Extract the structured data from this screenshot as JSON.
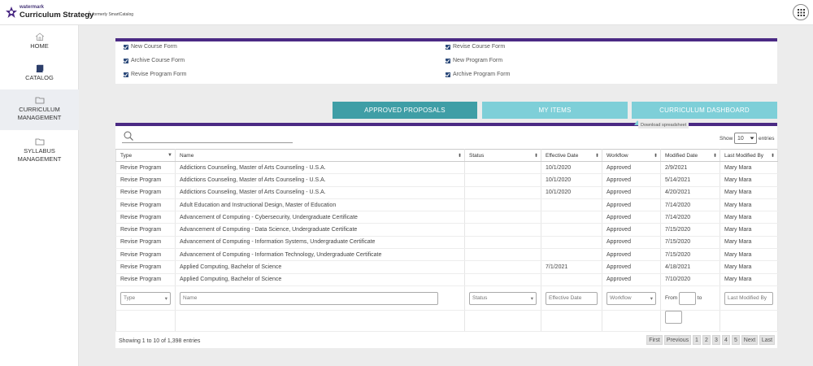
{
  "header": {
    "brand_small": "watermark",
    "brand_name": "Curriculum Strategy",
    "separator": "|",
    "formerly": "formerly SmartCatalog"
  },
  "sidebar": {
    "items": [
      {
        "label": "HOME",
        "icon": "home-icon"
      },
      {
        "label": "CATALOG",
        "icon": "book-icon"
      },
      {
        "label": "CURRICULUM MANAGEMENT",
        "line1": "CURRICULUM",
        "line2": "MANAGEMENT",
        "icon": "folder-icon"
      },
      {
        "label": "SYLLABUS MANAGEMENT",
        "line1": "SYLLABUS",
        "line2": "MANAGEMENT",
        "icon": "folder-icon"
      }
    ]
  },
  "forms": [
    "New Course Form",
    "Revise Course Form",
    "Archive Course Form",
    "New Program Form",
    "Revise Program Form",
    "Archive Program Form"
  ],
  "tabs": [
    "APPROVED PROPOSALS",
    "MY ITEMS",
    "CURRICULUM DASHBOARD"
  ],
  "tooltip": "Download spreadsheet",
  "search": {
    "placeholder": ""
  },
  "show": {
    "label": "Show",
    "value": "10",
    "suffix": "entries"
  },
  "table": {
    "headers": [
      "Type",
      "Name",
      "Status",
      "Effective Date",
      "Workflow",
      "Modified Date",
      "Last Modified By"
    ],
    "rows": [
      [
        "Revise Program",
        "Addictions Counseling, Master of Arts Counseling - U.S.A.",
        "",
        "10/1/2020",
        "Approved",
        "2/9/2021",
        "Mary Mara"
      ],
      [
        "Revise Program",
        "Addictions Counseling, Master of Arts Counseling - U.S.A.",
        "",
        "10/1/2020",
        "Approved",
        "5/14/2021",
        "Mary Mara"
      ],
      [
        "Revise Program",
        "Addictions Counseling, Master of Arts Counseling - U.S.A.",
        "",
        "10/1/2020",
        "Approved",
        "4/20/2021",
        "Mary Mara"
      ],
      [
        "Revise Program",
        "Adult Education and Instructional Design, Master of Education",
        "",
        "",
        "Approved",
        "7/14/2020",
        "Mary Mara"
      ],
      [
        "Revise Program",
        "Advancement of Computing - Cybersecurity, Undergraduate Certificate",
        "",
        "",
        "Approved",
        "7/14/2020",
        "Mary Mara"
      ],
      [
        "Revise Program",
        "Advancement of Computing - Data Science, Undergraduate Certificate",
        "",
        "",
        "Approved",
        "7/15/2020",
        "Mary Mara"
      ],
      [
        "Revise Program",
        "Advancement of Computing - Information Systems, Undergraduate Certificate",
        "",
        "",
        "Approved",
        "7/15/2020",
        "Mary Mara"
      ],
      [
        "Revise Program",
        "Advancement of Computing - Information Technology, Undergraduate Certificate",
        "",
        "",
        "Approved",
        "7/15/2020",
        "Mary Mara"
      ],
      [
        "Revise Program",
        "Applied Computing, Bachelor of Science",
        "",
        "7/1/2021",
        "Approved",
        "4/18/2021",
        "Mary Mara"
      ],
      [
        "Revise Program",
        "Applied Computing, Bachelor of Science",
        "",
        "",
        "Approved",
        "7/10/2020",
        "Mary Mara"
      ]
    ]
  },
  "filters": {
    "type": "Type",
    "name": "Name",
    "status": "Status",
    "effective_date": "Effective Date",
    "workflow": "Workflow",
    "from": "From",
    "to": "to",
    "last_modified_by": "Last Modified By"
  },
  "footer": {
    "info": "Showing 1 to 10 of 1,398 entries",
    "pager": [
      "First",
      "Previous",
      "1",
      "2",
      "3",
      "4",
      "5",
      "Next",
      "Last"
    ]
  },
  "colors": {
    "purple": "#4b2a84",
    "tab_teal": "#7ecfd8",
    "tab_selected": "#3f9ea6"
  }
}
